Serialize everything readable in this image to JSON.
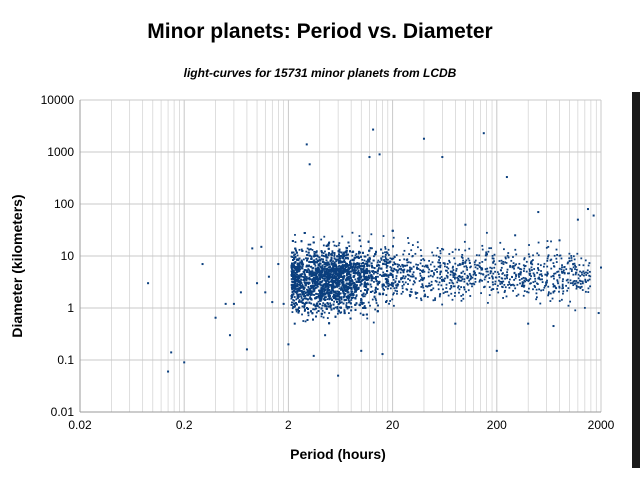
{
  "chart_data": {
    "type": "scatter",
    "title": "Minor planets: Period vs. Diameter",
    "subtitle": "light-curves for 15731 minor planets from LCDB",
    "xlabel": "Period (hours)",
    "ylabel": "Diameter (kilometers)",
    "xscale": "log",
    "yscale": "log",
    "xlim": [
      0.02,
      2000
    ],
    "ylim": [
      0.01,
      10000
    ],
    "xticks": [
      "0.02",
      "0.2",
      "2",
      "20",
      "200",
      "2000"
    ],
    "yticks": [
      "0.01",
      "0.1",
      "1",
      "10",
      "100",
      "1000",
      "10000"
    ],
    "grid": true,
    "legend": "none",
    "colors": {
      "points": "#0b3f7e",
      "grid": "#c8c8c8",
      "axis": "#9a9a9a"
    },
    "series": [
      {
        "points": [
          [
            0.09,
            3
          ],
          [
            0.14,
            0.06
          ],
          [
            0.15,
            0.14
          ],
          [
            0.2,
            0.09
          ],
          [
            0.3,
            7
          ],
          [
            0.4,
            0.65
          ],
          [
            0.5,
            1.2
          ],
          [
            0.55,
            0.3
          ],
          [
            0.6,
            1.2
          ],
          [
            0.7,
            2
          ],
          [
            0.8,
            0.16
          ],
          [
            0.9,
            14
          ],
          [
            1.0,
            3
          ],
          [
            1.1,
            15
          ],
          [
            1.2,
            2
          ],
          [
            1.3,
            4
          ],
          [
            1.4,
            1.3
          ],
          [
            1.6,
            7
          ],
          [
            1.8,
            1.2
          ],
          [
            2.0,
            0.2
          ],
          [
            2.3,
            0.5
          ],
          [
            3.0,
            1400
          ],
          [
            3.2,
            580
          ],
          [
            3.5,
            0.12
          ],
          [
            4.5,
            0.3
          ],
          [
            6.0,
            0.05
          ],
          [
            8.0,
            0.9
          ],
          [
            10,
            0.15
          ],
          [
            12,
            800
          ],
          [
            15,
            900
          ],
          [
            16,
            0.13
          ],
          [
            40,
            1800
          ],
          [
            60,
            800
          ],
          [
            80,
            0.5
          ],
          [
            100,
            40
          ],
          [
            150,
            2300
          ],
          [
            200,
            0.15
          ],
          [
            250,
            330
          ],
          [
            300,
            25
          ],
          [
            400,
            0.5
          ],
          [
            500,
            70
          ],
          [
            700,
            0.45
          ],
          [
            800,
            20
          ],
          [
            1000,
            8
          ],
          [
            1200,
            50
          ],
          [
            1500,
            80
          ],
          [
            1700,
            60
          ],
          [
            1900,
            0.8
          ],
          [
            2000,
            6
          ],
          [
            13,
            2700
          ]
        ]
      }
    ]
  }
}
